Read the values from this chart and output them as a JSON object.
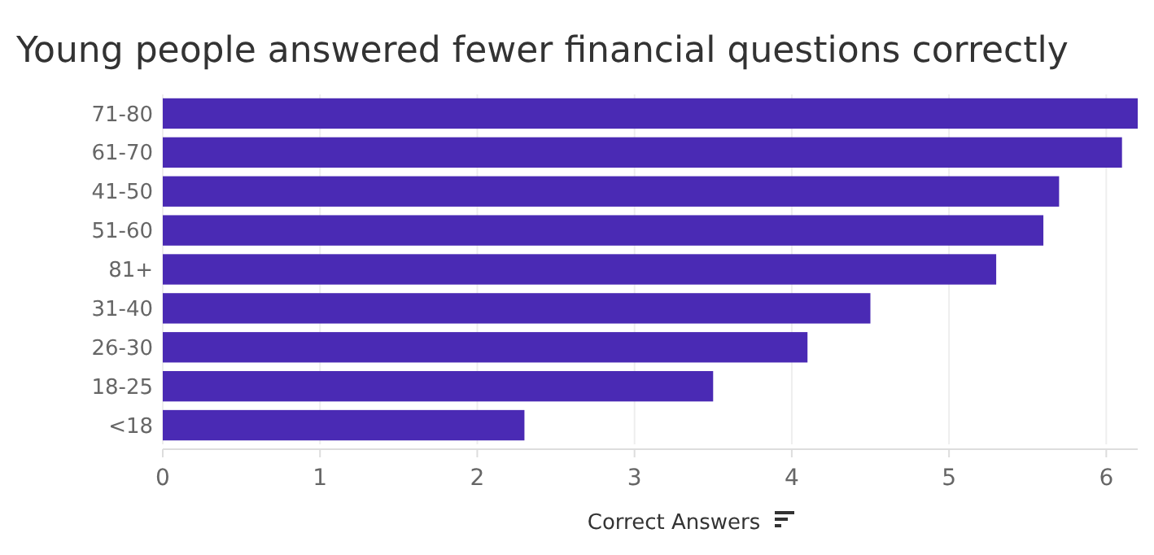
{
  "chart_data": {
    "type": "bar",
    "orientation": "horizontal",
    "title": "Young people answered fewer financial questions correctly",
    "xlabel": "Correct Answers",
    "categories": [
      "71-80",
      "61-70",
      "41-50",
      "51-60",
      "81+",
      "31-40",
      "26-30",
      "18-25",
      "<18"
    ],
    "values": [
      6.2,
      6.1,
      5.7,
      5.6,
      5.3,
      4.5,
      4.1,
      3.5,
      2.3
    ],
    "color": "#4a2ab4",
    "xlim": [
      0,
      6.2
    ],
    "xticks": [
      0,
      1,
      2,
      3,
      4,
      5,
      6
    ],
    "grid": "x"
  }
}
